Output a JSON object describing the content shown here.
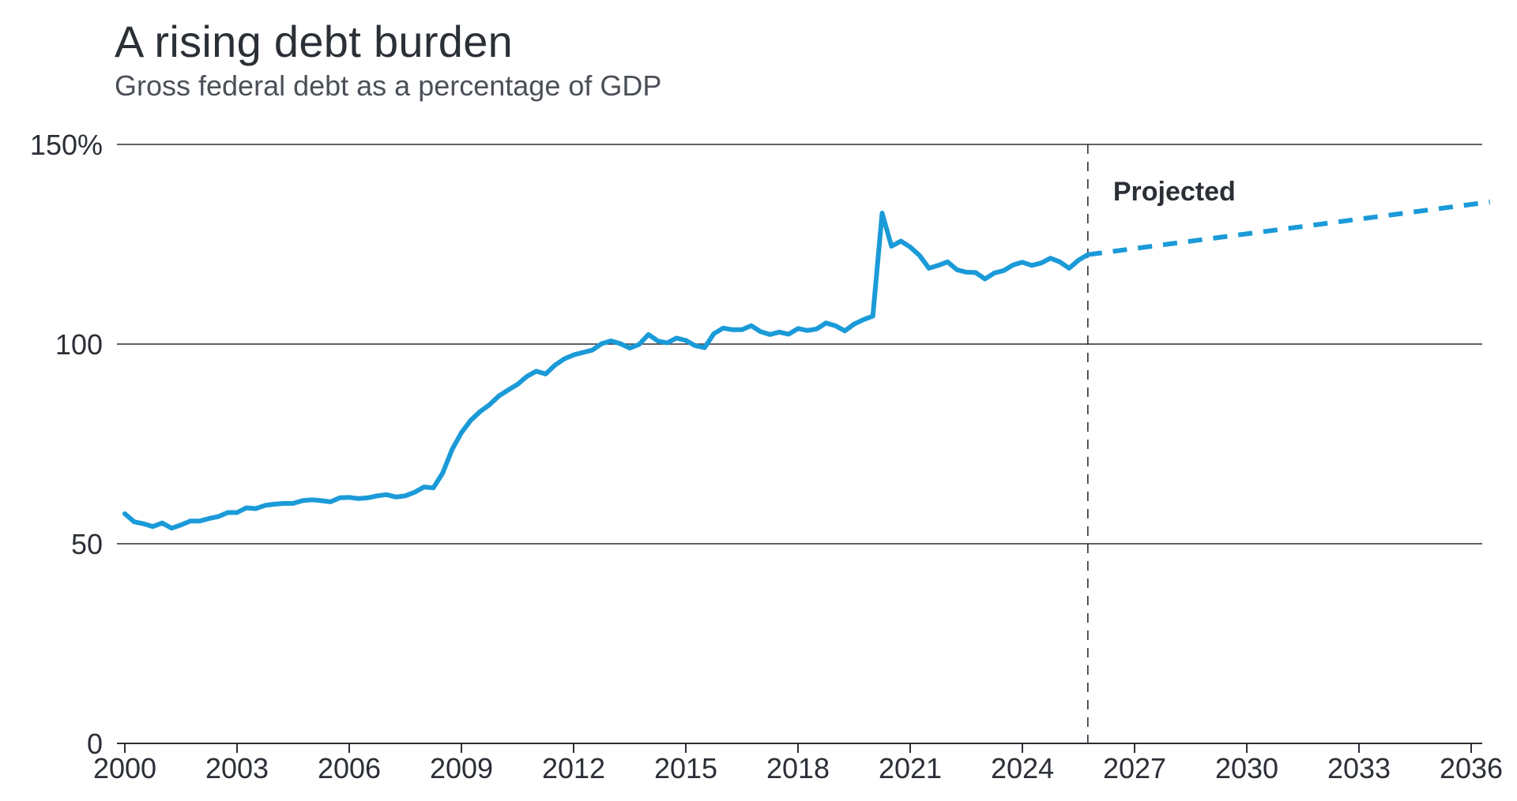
{
  "chart_data": {
    "type": "line",
    "title": "A rising debt burden",
    "subtitle": "Gross federal debt as a percentage of GDP",
    "xlabel": "",
    "ylabel": "",
    "xlim": [
      2000,
      2036.4
    ],
    "ylim": [
      0,
      150
    ],
    "y_ticks": [
      0,
      50,
      100,
      150
    ],
    "y_tick_labels": [
      "0",
      "50",
      "100",
      "150%"
    ],
    "x_ticks": [
      2000,
      2003,
      2006,
      2009,
      2012,
      2015,
      2018,
      2021,
      2024,
      2027,
      2030,
      2033,
      2036
    ],
    "x_tick_labels": [
      "2000",
      "2003",
      "2006",
      "2009",
      "2012",
      "2015",
      "2018",
      "2021",
      "2024",
      "2027",
      "2030",
      "2033",
      "2036"
    ],
    "grid": "horizontal",
    "annotation": {
      "text": "Projected",
      "x": 2025.75
    },
    "series": [
      {
        "style": "solid",
        "color": "#1b9ad8",
        "x": [
          2000.0,
          2000.25,
          2000.5,
          2000.75,
          2001.0,
          2001.25,
          2001.5,
          2001.75,
          2002.0,
          2002.25,
          2002.5,
          2002.75,
          2003.0,
          2003.25,
          2003.5,
          2003.75,
          2004.0,
          2004.25,
          2004.5,
          2004.75,
          2005.0,
          2005.25,
          2005.5,
          2005.75,
          2006.0,
          2006.25,
          2006.5,
          2006.75,
          2007.0,
          2007.25,
          2007.5,
          2007.75,
          2008.0,
          2008.25,
          2008.5,
          2008.75,
          2009.0,
          2009.25,
          2009.5,
          2009.75,
          2010.0,
          2010.25,
          2010.5,
          2010.75,
          2011.0,
          2011.25,
          2011.5,
          2011.75,
          2012.0,
          2012.25,
          2012.5,
          2012.75,
          2013.0,
          2013.25,
          2013.5,
          2013.75,
          2014.0,
          2014.25,
          2014.5,
          2014.75,
          2015.0,
          2015.25,
          2015.5,
          2015.75,
          2016.0,
          2016.25,
          2016.5,
          2016.75,
          2017.0,
          2017.25,
          2017.5,
          2017.75,
          2018.0,
          2018.25,
          2018.5,
          2018.75,
          2019.0,
          2019.25,
          2019.5,
          2019.75,
          2020.0,
          2020.25,
          2020.5,
          2020.75,
          2021.0,
          2021.25,
          2021.5,
          2021.75,
          2022.0,
          2022.25,
          2022.5,
          2022.75,
          2023.0,
          2023.25,
          2023.5,
          2023.75,
          2024.0,
          2024.25,
          2024.5,
          2024.75,
          2025.0,
          2025.25,
          2025.5,
          2025.75
        ],
        "y": [
          57.5,
          55.5,
          55.0,
          54.3,
          55.2,
          53.9,
          54.7,
          55.7,
          55.7,
          56.3,
          56.8,
          57.8,
          57.8,
          59.0,
          58.8,
          59.6,
          59.9,
          60.1,
          60.1,
          60.8,
          61.0,
          60.8,
          60.5,
          61.5,
          61.6,
          61.3,
          61.5,
          62.0,
          62.3,
          61.7,
          62.0,
          62.9,
          64.2,
          64.0,
          67.7,
          73.6,
          77.8,
          80.9,
          83.1,
          84.8,
          87.0,
          88.5,
          89.9,
          91.9,
          93.2,
          92.5,
          94.7,
          96.3,
          97.3,
          97.9,
          98.5,
          100.1,
          100.8,
          100.1,
          99.0,
          99.9,
          102.4,
          100.8,
          100.3,
          101.5,
          100.9,
          99.6,
          99.1,
          102.6,
          104.0,
          103.6,
          103.6,
          104.6,
          103.1,
          102.4,
          103.0,
          102.5,
          103.9,
          103.4,
          103.8,
          105.3,
          104.6,
          103.3,
          105.0,
          106.1,
          107.0,
          132.8,
          124.5,
          125.8,
          124.3,
          122.2,
          119.0,
          119.7,
          120.6,
          118.6,
          118.0,
          117.9,
          116.3,
          117.8,
          118.4,
          119.8,
          120.5,
          119.7,
          120.3,
          121.5,
          120.6,
          119.0,
          121.0,
          122.4
        ]
      },
      {
        "style": "dashed",
        "color": "#1b9ad8",
        "x": [
          2025.75,
          2036.5
        ],
        "y": [
          122.4,
          135.6
        ]
      }
    ]
  }
}
